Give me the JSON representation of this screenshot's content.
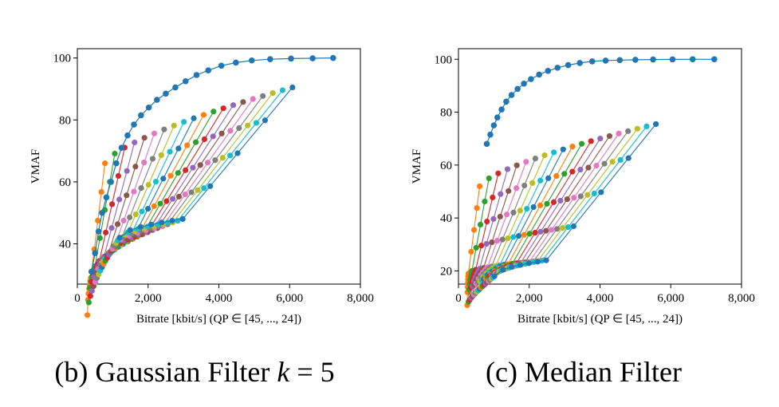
{
  "colors": [
    "#1f77b4",
    "#ff7f0e",
    "#2ca02c",
    "#d62728",
    "#9467bd",
    "#8c564b",
    "#e377c2",
    "#7f7f7f",
    "#bcbd22",
    "#17becf"
  ],
  "chart_data": [
    {
      "type": "line",
      "caption_prefix": "(b) Gaussian Filter ",
      "caption_var": "k",
      "caption_suffix": " = 5",
      "xlabel": "Bitrate [kbit/s] (QP ∈ [45, ..., 24])",
      "ylabel": "VMAF",
      "xlim": [
        0,
        8000
      ],
      "ylim": [
        27,
        103
      ],
      "xticks": [
        0,
        2000,
        4000,
        6000,
        8000
      ],
      "xticklabels": [
        "0",
        "2,000",
        "4,000",
        "6,000",
        "8,000"
      ],
      "yticks": [
        40,
        60,
        80,
        100
      ],
      "yticklabels": [
        "40",
        "60",
        "80",
        "100"
      ],
      "grid": false,
      "reference": {
        "x": [
          400,
          500,
          600,
          700,
          820,
          950,
          1100,
          1250,
          1420,
          1600,
          1800,
          2020,
          2250,
          2500,
          2770,
          3060,
          3370,
          3700,
          4070,
          4480,
          4930,
          5450,
          6040,
          6650,
          7230
        ],
        "y": [
          31,
          37,
          44,
          50,
          55,
          60,
          66,
          71,
          75,
          78.5,
          81.5,
          84,
          86.5,
          88.5,
          90.5,
          92.5,
          94.5,
          96,
          97.5,
          98.5,
          99.2,
          99.6,
          99.8,
          99.9,
          100
        ]
      },
      "ladders": {
        "count": 20,
        "low_x_start": 380,
        "low_x_end": 2980,
        "low_y_start": 29,
        "low_y_end": 48,
        "high_x_start": 780,
        "high_x_end": 6080,
        "high_y_start": 66,
        "high_y_end": 90.5,
        "n_low": 7,
        "n_high": 4,
        "low_knee_frac": 0.55
      }
    },
    {
      "type": "line",
      "caption_prefix": "(c) Median Filter",
      "caption_var": "",
      "caption_suffix": "",
      "xlabel": "Bitrate [kbit/s] (QP ∈ [45, ..., 24])",
      "ylabel": "VMAF",
      "xlim": [
        0,
        8000
      ],
      "ylim": [
        15,
        104
      ],
      "xticks": [
        0,
        2000,
        4000,
        6000,
        8000
      ],
      "xticklabels": [
        "0",
        "2,000",
        "4,000",
        "6,000",
        "8,000"
      ],
      "yticks": [
        20,
        40,
        60,
        80,
        100
      ],
      "yticklabels": [
        "20",
        "40",
        "60",
        "80",
        "100"
      ],
      "grid": false,
      "reference": {
        "x": [
          800,
          900,
          1000,
          1100,
          1220,
          1350,
          1500,
          1670,
          1850,
          2050,
          2280,
          2530,
          2800,
          3100,
          3430,
          3780,
          4160,
          4560,
          5000,
          5500,
          6050,
          6620,
          7230
        ],
        "y": [
          68,
          71.5,
          75,
          78,
          81,
          84,
          86.5,
          88.8,
          90.8,
          92.5,
          94.2,
          95.6,
          96.8,
          97.8,
          98.6,
          99.2,
          99.5,
          99.7,
          99.8,
          99.9,
          99.95,
          100,
          100
        ]
      },
      "ladders": {
        "count": 20,
        "low_x_start": 280,
        "low_x_end": 2480,
        "low_y_start": 19,
        "low_y_end": 24,
        "high_x_start": 600,
        "high_x_end": 5580,
        "high_y_start": 52,
        "high_y_end": 75.5,
        "n_low": 7,
        "n_high": 4,
        "low_knee_frac": 0.5
      },
      "mid_points": {
        "note_y_range": [
          30,
          47
        ]
      }
    }
  ]
}
